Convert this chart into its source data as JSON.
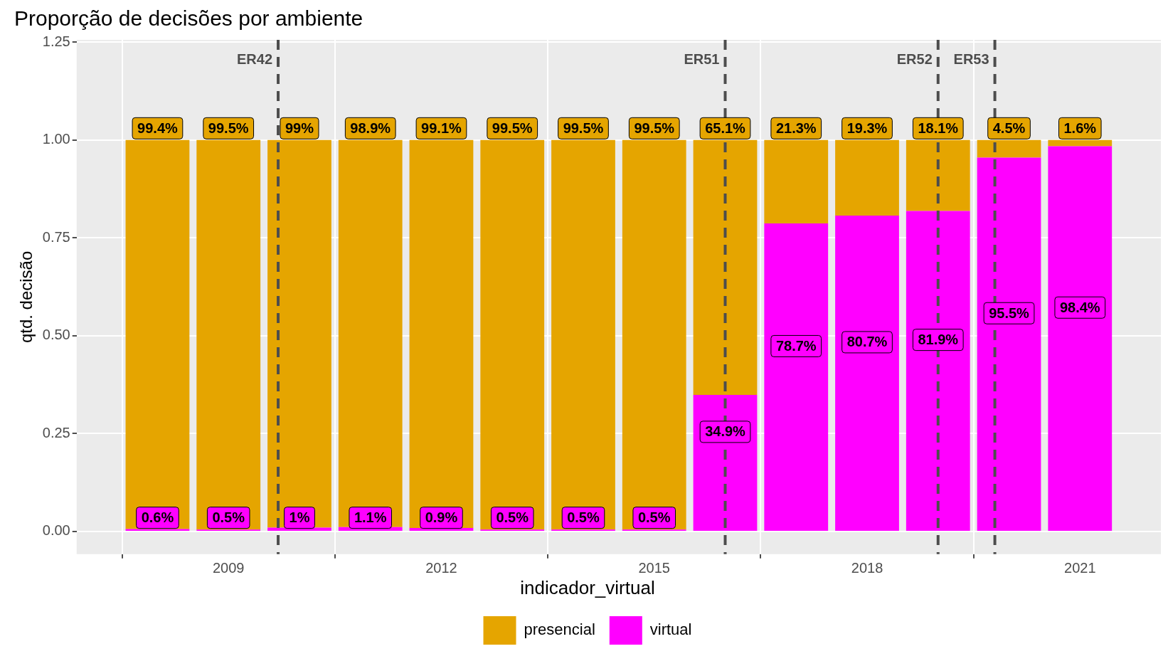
{
  "chart_data": {
    "type": "bar",
    "title": "Proporção de decisões por ambiente",
    "xlabel": null,
    "ylabel": "qtd. decisão",
    "legend_title": "indicador_virtual",
    "stacked": true,
    "grid": true,
    "legend": "bottom",
    "x": [
      2008,
      2009,
      2010,
      2011,
      2012,
      2013,
      2014,
      2015,
      2016,
      2017,
      2018,
      2019,
      2020,
      2021
    ],
    "xlim": [
      2006.86,
      2022.14
    ],
    "xticks": [
      2009,
      2012,
      2015,
      2018,
      2021
    ],
    "ylim": [
      -0.058,
      1.256
    ],
    "yticks": [
      {
        "value": 0,
        "label": "0.00"
      },
      {
        "value": 0.25,
        "label": "0.25"
      },
      {
        "value": 0.5,
        "label": "0.50"
      },
      {
        "value": 0.75,
        "label": "0.75"
      },
      {
        "value": 1,
        "label": "1.00"
      },
      {
        "value": 1.25,
        "label": "1.25"
      }
    ],
    "series": [
      {
        "name": "virtual",
        "color": "#ff00ff",
        "values": [
          0.006,
          0.005,
          0.01,
          0.011,
          0.009,
          0.005,
          0.005,
          0.005,
          0.349,
          0.787,
          0.807,
          0.819,
          0.955,
          0.984
        ],
        "value_labels": [
          "0.6%",
          "0.5%",
          "1%",
          "1.1%",
          "0.9%",
          "0.5%",
          "0.5%",
          "0.5%",
          "34.9%",
          "78.7%",
          "80.7%",
          "81.9%",
          "95.5%",
          "98.4%"
        ]
      },
      {
        "name": "presencial",
        "color": "#e5a500",
        "values": [
          0.994,
          0.995,
          0.99,
          0.989,
          0.991,
          0.995,
          0.995,
          0.995,
          0.651,
          0.213,
          0.193,
          0.181,
          0.045,
          0.016
        ],
        "value_labels": [
          "99.4%",
          "99.5%",
          "99%",
          "98.9%",
          "99.1%",
          "99.5%",
          "99.5%",
          "99.5%",
          "65.1%",
          "21.3%",
          "19.3%",
          "18.1%",
          "4.5%",
          "1.6%"
        ]
      }
    ],
    "ref_lines": [
      {
        "axis": "x",
        "value": 2009.7,
        "label": "ER42",
        "line_style": "dashed",
        "color": "#4d4d4d"
      },
      {
        "axis": "x",
        "value": 2016.0,
        "label": "ER51",
        "line_style": "dashed",
        "color": "#4d4d4d"
      },
      {
        "axis": "x",
        "value": 2019.0,
        "label": "ER52",
        "line_style": "dashed",
        "color": "#4d4d4d"
      },
      {
        "axis": "x",
        "value": 2019.8,
        "label": "ER53",
        "line_style": "dashed",
        "color": "#4d4d4d"
      }
    ]
  }
}
